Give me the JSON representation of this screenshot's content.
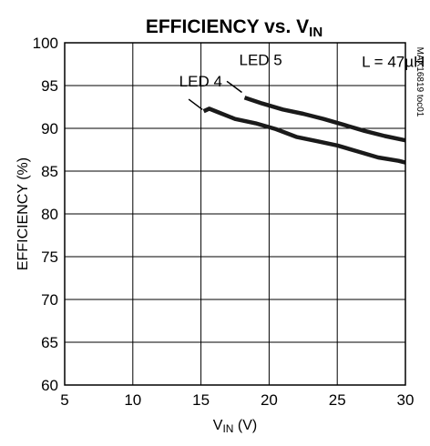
{
  "chart_data": {
    "type": "line",
    "title": "EFFICIENCY vs. V",
    "title_subscript": "IN",
    "xlabel": "V",
    "xlabel_subscript": "IN",
    "xlabel_unit": " (V)",
    "ylabel": "EFFICIENCY (%)",
    "xlim": [
      5,
      30
    ],
    "ylim": [
      60,
      100
    ],
    "xticks": [
      5,
      10,
      15,
      20,
      25,
      30
    ],
    "yticks": [
      60,
      65,
      70,
      75,
      80,
      85,
      90,
      95,
      100
    ],
    "grid": true,
    "series": [
      {
        "name": "LED 4",
        "x": [
          15.2,
          15.6,
          16.4,
          17.5,
          19,
          20.5,
          22,
          23.5,
          25,
          26.5,
          28,
          29.5,
          30
        ],
        "y": [
          92.0,
          92.3,
          91.8,
          91.1,
          90.6,
          89.9,
          89.0,
          88.5,
          88.0,
          87.3,
          86.6,
          86.2,
          86.0
        ]
      },
      {
        "name": "LED 5",
        "x": [
          18.2,
          19.5,
          21,
          22.5,
          24,
          25.5,
          27,
          28.5,
          30
        ],
        "y": [
          93.6,
          92.9,
          92.2,
          91.7,
          91.1,
          90.4,
          89.7,
          89.1,
          88.6
        ]
      }
    ],
    "annotations": [
      {
        "text": "LED 5",
        "x": 17.8,
        "y": 97.4
      },
      {
        "text": "LED 4",
        "x": 13.4,
        "y": 94.9
      },
      {
        "text": "L = 47µH",
        "x": 26.8,
        "y": 97.2
      }
    ],
    "leaders": [
      {
        "from": [
          16.9,
          95.5
        ],
        "to": [
          18.0,
          94.2
        ]
      },
      {
        "from": [
          14.1,
          93.4
        ],
        "to": [
          15.1,
          92.2
        ]
      }
    ],
    "side_code": "MAX16819 toc01"
  }
}
